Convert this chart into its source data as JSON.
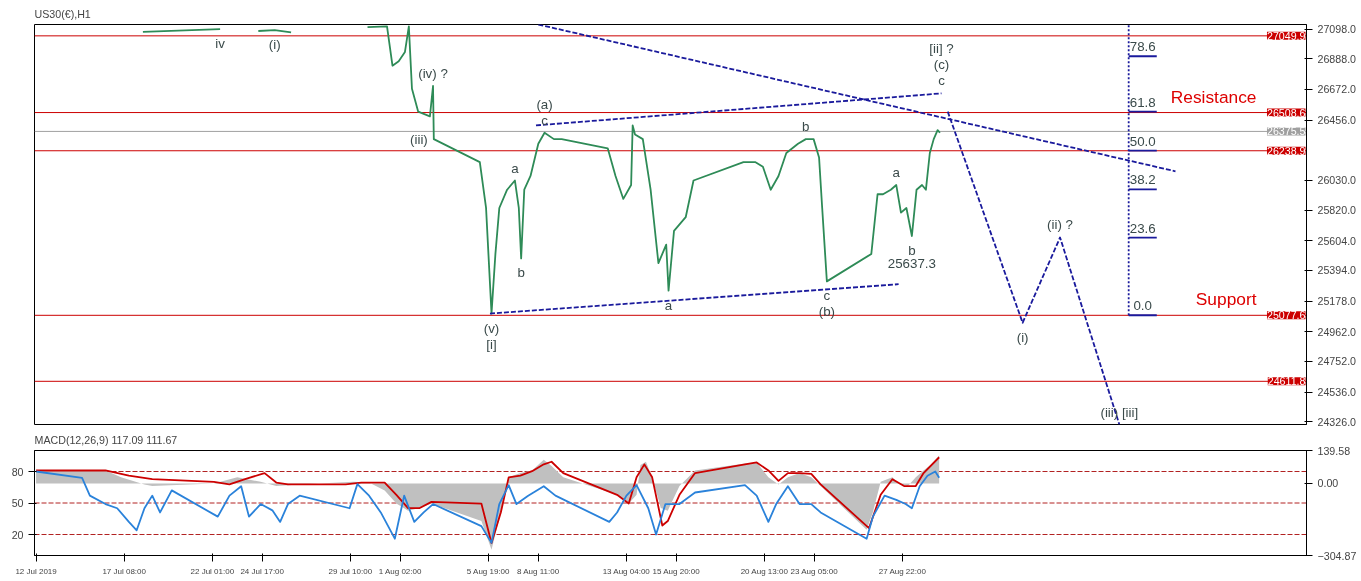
{
  "chart_data": [
    {
      "type": "line",
      "title": "US30(€),H1",
      "tick_labels": "y",
      "grid": false,
      "xlim": [
        "2019-07-12T13:00",
        "2019-09-18T12:00"
      ],
      "ylim": [
        24307,
        27130
      ],
      "yticks": [
        {
          "value": 27098,
          "label": "27098.0"
        },
        {
          "value": 26888,
          "label": "26888.0"
        },
        {
          "value": 26672,
          "label": "26672.0"
        },
        {
          "value": 26456,
          "label": "26456.0"
        },
        {
          "value": 26030,
          "label": "26030.0"
        },
        {
          "value": 25820,
          "label": "25820.0"
        },
        {
          "value": 25604,
          "label": "25604.0"
        },
        {
          "value": 25394,
          "label": "25394.0"
        },
        {
          "value": 25178,
          "label": "25178.0"
        },
        {
          "value": 24962,
          "label": "24962.0"
        },
        {
          "value": 24752,
          "label": "24752.0"
        },
        {
          "value": 24536,
          "label": "24536.0"
        },
        {
          "value": 24326,
          "label": "24326.0"
        }
      ],
      "series": [
        {
          "color": "#2e8b57",
          "line_style": "solid",
          "x": [
            "2019-07-18T08:00",
            "2019-07-22T11:00",
            "2019-07-22T12:00",
            "2019-07-24T12:00",
            "2019-07-25T09:00",
            "2019-07-26T06:00",
            "2019-07-26T07:00",
            "2019-07-30T08:00",
            "2019-07-31T09:00",
            "2019-07-31T16:00",
            "2019-08-01T00:00",
            "2019-08-01T08:00",
            "2019-08-01T13:00",
            "2019-08-01T17:00",
            "2019-08-02T01:00",
            "2019-08-02T16:00",
            "2019-08-02T20:00",
            "2019-08-02T21:00",
            "2019-08-05T08:00",
            "2019-08-05T16:00",
            "2019-08-05T23:00",
            "2019-08-06T04:00",
            "2019-08-06T09:00",
            "2019-08-06T19:00",
            "2019-08-07T05:00",
            "2019-08-07T10:00",
            "2019-08-07T13:00",
            "2019-08-07T17:00",
            "2019-08-08T01:00",
            "2019-08-08T11:00",
            "2019-08-08T19:00",
            "2019-08-09T07:00",
            "2019-08-09T17:00",
            "2019-08-12T04:00",
            "2019-08-12T14:00",
            "2019-08-13T00:00",
            "2019-08-13T10:00",
            "2019-08-13T12:00",
            "2019-08-13T15:00",
            "2019-08-14T01:00",
            "2019-08-14T11:00",
            "2019-08-14T21:00",
            "2019-08-15T07:00",
            "2019-08-15T10:00",
            "2019-08-15T17:00",
            "2019-08-16T08:00",
            "2019-08-16T18:00",
            "2019-08-19T10:00",
            "2019-08-20T01:00",
            "2019-08-20T11:00",
            "2019-08-20T21:00",
            "2019-08-21T07:00",
            "2019-08-21T17:00",
            "2019-08-22T08:00",
            "2019-08-22T18:00",
            "2019-08-23T04:00",
            "2019-08-23T11:00",
            "2019-08-23T15:00",
            "2019-08-23T21:00",
            "2019-08-26T06:00",
            "2019-08-26T14:00",
            "2019-08-26T21:00",
            "2019-08-27T07:00",
            "2019-08-27T14:00",
            "2019-08-27T20:00",
            "2019-08-28T03:00",
            "2019-08-28T10:00",
            "2019-08-28T16:00",
            "2019-08-28T23:00",
            "2019-08-29T04:00",
            "2019-08-29T09:00",
            "2019-08-29T14:00",
            "2019-08-29T19:00",
            "2019-08-29T22:00"
          ],
          "values": [
            27078,
            27098,
            null,
            27084,
            27091,
            27075,
            null,
            27111,
            27117,
            26839,
            26871,
            26936,
            27117,
            26677,
            26515,
            26482,
            26696,
            26321,
            26159,
            25835,
            25090,
            25511,
            25835,
            25964,
            26029,
            25835,
            25479,
            25964,
            26061,
            26288,
            26366,
            26321,
            26321,
            26256,
            26061,
            25899,
            25997,
            26418,
            26353,
            26321,
            25964,
            25446,
            25576,
            25252,
            25673,
            25770,
            26029,
            26159,
            26159,
            26126,
            25964,
            26061,
            26223,
            26288,
            26321,
            26321,
            26191,
            25835,
            25317,
            25511,
            25932,
            25932,
            25964,
            25997,
            25802,
            25835,
            25637.3,
            25964,
            25997,
            25964,
            26223,
            26321,
            26385,
            26366
          ]
        },
        {
          "color": "#1a1a9c",
          "line_style": "dashed",
          "x": [
            "2019-08-08T08:00",
            "2019-08-30T00:00"
          ],
          "values": [
            26418,
            26644
          ]
        },
        {
          "color": "#1a1a9c",
          "line_style": "dashed",
          "x": [
            "2019-08-05T21:00",
            "2019-08-27T17:00"
          ],
          "values": [
            25090,
            25297
          ]
        },
        {
          "color": "#1a1a9c",
          "line_style": "dashed",
          "x": [
            "2019-08-08T11:00",
            "2019-09-11T12:00"
          ],
          "values": [
            27130,
            26094
          ]
        },
        {
          "color": "#1a1a9c",
          "line_style": "dashed",
          "x": [
            "2019-08-30T08:00",
            "2019-09-03T08:00",
            "2019-09-05T08:00",
            "2019-09-08T12:00"
          ],
          "values": [
            26515,
            25025,
            25627,
            24307
          ]
        },
        {
          "color": "#1a1a9c",
          "line_style": "dotted",
          "x": [
            "2019-09-09T00:00",
            "2019-09-09T00:00"
          ],
          "values": [
            25078,
            27130
          ]
        },
        {
          "color": "#1a1a9c",
          "line_style": "solid",
          "x": [
            "2019-09-09T00:00",
            "2019-09-09T18:00",
            "2019-09-10T12:00"
          ],
          "values": [
            26906,
            26906,
            26906
          ]
        },
        {
          "color": "#1a1a9c",
          "line_style": "solid",
          "x": [
            "2019-09-09T00:00",
            "2019-09-09T18:00",
            "2019-09-10T12:00"
          ],
          "values": [
            26515,
            26515,
            26515
          ]
        },
        {
          "color": "#1a1a9c",
          "line_style": "solid",
          "x": [
            "2019-09-09T00:00",
            "2019-09-09T18:00",
            "2019-09-10T12:00"
          ],
          "values": [
            26240,
            26240,
            26240
          ]
        },
        {
          "color": "#1a1a9c",
          "line_style": "solid",
          "x": [
            "2019-09-09T00:00",
            "2019-09-09T18:00",
            "2019-09-10T12:00"
          ],
          "values": [
            25966,
            25966,
            25966
          ]
        },
        {
          "color": "#1a1a9c",
          "line_style": "solid",
          "x": [
            "2019-09-09T00:00",
            "2019-09-09T18:00",
            "2019-09-10T12:00"
          ],
          "values": [
            25626,
            25626,
            25626
          ]
        },
        {
          "color": "#1a1a9c",
          "line_style": "solid",
          "x": [
            "2019-09-09T00:00",
            "2019-09-09T18:00",
            "2019-09-10T12:00"
          ],
          "values": [
            25078,
            25078,
            25078
          ]
        }
      ],
      "ref_lines": [
        {
          "axis": "y",
          "value": 27049.9,
          "label": "27049.9",
          "color": "#cc0000"
        },
        {
          "axis": "y",
          "value": 26508.6,
          "label": "26508.6",
          "color": "#cc0000"
        },
        {
          "axis": "y",
          "value": 26375.5,
          "label": "26375.5",
          "color": "#a0a0a0"
        },
        {
          "axis": "y",
          "value": 26238.9,
          "label": "26238.9",
          "color": "#cc0000"
        },
        {
          "axis": "y",
          "value": 25077.6,
          "label": "25077.6",
          "color": "#cc0000"
        },
        {
          "axis": "y",
          "value": 24611.8,
          "label": "24611.8",
          "color": "#cc0000"
        }
      ],
      "annotations": [
        {
          "text": "iv",
          "x": "2019-07-22T11:00",
          "y": 27098
        },
        {
          "text": "(i)",
          "x": "2019-07-25T09:00",
          "y": 27091
        },
        {
          "text": "(iv) ?",
          "x": "2019-08-02T20:00",
          "y": 26696
        },
        {
          "text": "(iii)",
          "x": "2019-08-02T21:00",
          "y": 26321
        },
        {
          "text": "c",
          "x": "2019-08-08T19:00",
          "y": 26366
        },
        {
          "text": "(a)",
          "x": "2019-08-08T19:00",
          "y": 26366
        },
        {
          "text": "a",
          "x": "2019-08-07T05:00",
          "y": 26029
        },
        {
          "text": "b",
          "x": "2019-08-07T13:00",
          "y": 25479
        },
        {
          "text": "(v)",
          "x": "2019-08-05T23:00",
          "y": 25090
        },
        {
          "text": "[i]",
          "x": "2019-08-05T23:00",
          "y": 25090
        },
        {
          "text": "a",
          "x": "2019-08-15T10:00",
          "y": 25252
        },
        {
          "text": "b",
          "x": "2019-08-22T18:00",
          "y": 26321
        },
        {
          "text": "a",
          "x": "2019-08-27T14:00",
          "y": 25997
        },
        {
          "text": "b",
          "x": "2019-08-28T10:00",
          "y": 25637.3
        },
        {
          "text": "25637.3",
          "x": "2019-08-28T10:00",
          "y": 25637.3
        },
        {
          "text": "c",
          "x": "2019-08-23T21:00",
          "y": 25317
        },
        {
          "text": "(b)",
          "x": "2019-08-23T21:00",
          "y": 25317
        },
        {
          "text": "c",
          "x": "2019-08-30T00:00",
          "y": 26644
        },
        {
          "text": "(c)",
          "x": "2019-08-30T00:00",
          "y": 26644
        },
        {
          "text": "[ii] ?",
          "x": "2019-08-30T00:00",
          "y": 26644
        },
        {
          "text": "(i)",
          "x": "2019-09-03T08:00",
          "y": 25025
        },
        {
          "text": "(ii) ?",
          "x": "2019-09-05T08:00",
          "y": 25627
        },
        {
          "text": "(iii) [iii]",
          "x": "2019-09-08T12:00",
          "y": 24307
        },
        {
          "text": "78.6",
          "x": "2019-09-09T18:00",
          "y": 26906
        },
        {
          "text": "61.8",
          "x": "2019-09-09T18:00",
          "y": 26515
        },
        {
          "text": "50.0",
          "x": "2019-09-09T18:00",
          "y": 26240
        },
        {
          "text": "38.2",
          "x": "2019-09-09T18:00",
          "y": 25966
        },
        {
          "text": "23.6",
          "x": "2019-09-09T18:00",
          "y": 25626
        },
        {
          "text": "0.0",
          "x": "2019-09-09T18:00",
          "y": 25078
        },
        {
          "text": "Resistance",
          "y": 26508.6
        },
        {
          "text": "Support",
          "y": 25077.6
        }
      ]
    },
    {
      "type": "line",
      "title": "MACD(12,26,9) 117.09 111.67",
      "grid": false,
      "xlim": [
        "2019-07-12T13:00",
        "2019-09-18T12:00"
      ],
      "ylim": [
        -304.87,
        139.58
      ],
      "y2lim": [
        0,
        100
      ],
      "xticks": [
        {
          "value": "2019-07-12T15:00",
          "label": "12 Jul 2019"
        },
        {
          "value": "2019-07-17T08:00",
          "label": "17 Jul 08:00"
        },
        {
          "value": "2019-07-22T01:00",
          "label": "22 Jul 01:00"
        },
        {
          "value": "2019-07-24T17:00",
          "label": "24 Jul 17:00"
        },
        {
          "value": "2019-07-29T10:00",
          "label": "29 Jul 10:00"
        },
        {
          "value": "2019-08-01T02:00",
          "label": "1 Aug 02:00"
        },
        {
          "value": "2019-08-05T19:00",
          "label": "5 Aug 19:00"
        },
        {
          "value": "2019-08-08T11:00",
          "label": "8 Aug 11:00"
        },
        {
          "value": "2019-08-13T04:00",
          "label": "13 Aug 04:00"
        },
        {
          "value": "2019-08-15T20:00",
          "label": "15 Aug 20:00"
        },
        {
          "value": "2019-08-20T13:00",
          "label": "20 Aug 13:00"
        },
        {
          "value": "2019-08-23T05:00",
          "label": "23 Aug 05:00"
        },
        {
          "value": "2019-08-27T22:00",
          "label": "27 Aug 22:00"
        }
      ],
      "yticks": [
        139.58,
        {
          "value": 0,
          "label": "0.00"
        },
        -304.87
      ],
      "y2ticks": [
        80,
        50,
        20
      ],
      "series": [
        {
          "type": "area",
          "color": "#c0c0c0",
          "x": [
            "2019-07-12T15:00",
            "2019-07-16T08:00",
            "2019-07-17T04:00",
            "2019-07-18T10:00",
            "2019-07-18T20:00",
            "2019-07-22T03:00",
            "2019-07-23T09:00",
            "2019-07-24T15:00",
            "2019-07-25T11:00",
            "2019-07-26T17:00",
            "2019-07-29T14:00",
            "2019-07-30T10:00",
            "2019-07-31T06:00",
            "2019-07-31T21:00",
            "2019-08-01T12:00",
            "2019-08-02T03:00",
            "2019-08-02T18:00",
            "2019-08-05T10:00",
            "2019-08-05T23:00",
            "2019-08-06T11:00",
            "2019-08-06T21:00",
            "2019-08-07T12:00",
            "2019-08-08T03:00",
            "2019-08-08T18:00",
            "2019-08-09T04:00",
            "2019-08-09T19:00",
            "2019-08-12T16:00",
            "2019-08-13T07:00",
            "2019-08-13T17:00",
            "2019-08-13T22:00",
            "2019-08-14T05:00",
            "2019-08-14T13:00",
            "2019-08-15T00:00",
            "2019-08-15T09:00",
            "2019-08-16T00:00",
            "2019-08-16T20:00",
            "2019-08-19T12:00",
            "2019-08-20T03:00",
            "2019-08-20T18:00",
            "2019-08-21T07:00",
            "2019-08-21T19:00",
            "2019-08-22T10:00",
            "2019-08-23T01:00",
            "2019-08-23T13:00",
            "2019-08-26T00:00",
            "2019-08-26T08:00",
            "2019-08-26T18:00",
            "2019-08-27T09:00",
            "2019-08-27T19:00",
            "2019-08-28T05:00",
            "2019-08-28T15:00",
            "2019-08-29T01:00",
            "2019-08-29T11:00",
            "2019-08-29T21:00"
          ],
          "values": [
            55,
            55,
            26,
            -4,
            -11,
            0,
            26,
            7,
            -11,
            -4,
            7,
            4,
            -30,
            -85,
            -115,
            -104,
            -85,
            -159,
            -281,
            -122,
            26,
            44,
            55,
            100,
            74,
            26,
            -48,
            -85,
            -48,
            78,
            92,
            26,
            -104,
            -115,
            -11,
            55,
            85,
            89,
            26,
            -4,
            26,
            44,
            26,
            -11,
            -196,
            -122,
            7,
            26,
            -4,
            -11,
            26,
            55,
            81,
            118
          ]
        },
        {
          "color": "#cc0000",
          "x": [
            "2019-07-12T15:00",
            "2019-07-16T08:00",
            "2019-07-17T14:00",
            "2019-07-18T20:00",
            "2019-07-22T03:00",
            "2019-07-22T23:00",
            "2019-07-23T19:00",
            "2019-07-24T20:00",
            "2019-07-25T11:00",
            "2019-07-26T02:00",
            "2019-07-29T04:00",
            "2019-07-30T00:00",
            "2019-07-31T06:00",
            "2019-07-31T21:00",
            "2019-08-01T12:00",
            "2019-08-02T03:00",
            "2019-08-02T18:00",
            "2019-08-05T10:00",
            "2019-08-05T23:00",
            "2019-08-06T11:00",
            "2019-08-06T21:00",
            "2019-08-07T12:00",
            "2019-08-08T03:00",
            "2019-08-08T18:00",
            "2019-08-09T04:00",
            "2019-08-09T19:00",
            "2019-08-12T16:00",
            "2019-08-13T07:00",
            "2019-08-13T17:00",
            "2019-08-14T03:00",
            "2019-08-14T13:00",
            "2019-08-15T02:00",
            "2019-08-15T09:00",
            "2019-08-16T00:00",
            "2019-08-16T20:00",
            "2019-08-19T12:00",
            "2019-08-20T03:00",
            "2019-08-20T18:00",
            "2019-08-21T07:00",
            "2019-08-21T19:00",
            "2019-08-22T10:00",
            "2019-08-23T01:00",
            "2019-08-23T13:00",
            "2019-08-26T03:00",
            "2019-08-26T18:00",
            "2019-08-27T09:00",
            "2019-08-28T00:00",
            "2019-08-28T15:00",
            "2019-08-29T01:00",
            "2019-08-29T21:00"
          ],
          "values": [
            55,
            55,
            33,
            18,
            7,
            -4,
            18,
            44,
            4,
            -4,
            -4,
            4,
            4,
            -48,
            -104,
            -104,
            -78,
            -85,
            -252,
            -122,
            26,
            33,
            52,
            81,
            92,
            44,
            -48,
            -85,
            26,
            81,
            26,
            -178,
            -159,
            -48,
            44,
            81,
            89,
            55,
            11,
            44,
            44,
            41,
            -4,
            -189,
            -48,
            18,
            -11,
            -11,
            44,
            111
          ]
        },
        {
          "color": "#2a82da",
          "axis": "y2",
          "x": [
            "2019-07-12T15:00",
            "2019-07-15T02:00",
            "2019-07-15T12:00",
            "2019-07-16T08:00",
            "2019-07-16T23:00",
            "2019-07-17T14:00",
            "2019-07-18T00:00",
            "2019-07-18T10:00",
            "2019-07-18T20:00",
            "2019-07-19T06:00",
            "2019-07-19T21:00",
            "2019-07-22T08:00",
            "2019-07-22T23:00",
            "2019-07-23T14:00",
            "2019-07-24T00:00",
            "2019-07-24T15:00",
            "2019-07-25T06:00",
            "2019-07-25T16:00",
            "2019-07-26T02:00",
            "2019-07-26T17:00",
            "2019-07-29T09:00",
            "2019-07-29T19:00",
            "2019-07-30T10:00",
            "2019-07-31T01:00",
            "2019-07-31T19:00",
            "2019-08-01T07:00",
            "2019-08-01T20:00",
            "2019-08-02T08:00",
            "2019-08-02T20:00",
            "2019-08-05T10:00",
            "2019-08-05T23:00",
            "2019-08-06T09:00",
            "2019-08-06T21:00",
            "2019-08-07T07:00",
            "2019-08-07T22:00",
            "2019-08-08T18:00",
            "2019-08-09T09:00",
            "2019-08-12T06:00",
            "2019-08-12T16:00",
            "2019-08-13T04:00",
            "2019-08-13T17:00",
            "2019-08-14T08:00",
            "2019-08-14T18:00",
            "2019-08-15T06:00",
            "2019-08-16T00:00",
            "2019-08-16T20:00",
            "2019-08-19T12:00",
            "2019-08-20T03:00",
            "2019-08-20T18:00",
            "2019-08-21T04:00",
            "2019-08-21T19:00",
            "2019-08-22T10:00",
            "2019-08-23T01:00",
            "2019-08-23T13:00",
            "2019-08-26T00:00",
            "2019-08-26T08:00",
            "2019-08-26T23:00",
            "2019-08-27T14:00",
            "2019-08-28T02:00",
            "2019-08-28T10:00",
            "2019-08-28T20:00",
            "2019-08-29T06:00",
            "2019-08-29T16:00",
            "2019-08-29T21:00"
          ],
          "values": [
            80,
            74,
            57,
            49,
            45,
            32,
            24,
            45,
            57,
            41,
            62,
            37,
            57,
            66,
            37,
            49,
            43,
            32,
            49,
            57,
            45,
            68,
            57,
            41,
            16,
            57,
            32,
            41,
            49,
            28,
            12,
            49,
            67,
            49,
            57,
            66,
            57,
            32,
            41,
            57,
            67,
            45,
            20,
            49,
            49,
            60,
            67,
            57,
            32,
            49,
            66,
            49,
            49,
            41,
            16,
            37,
            57,
            53,
            49,
            45,
            66,
            76,
            80,
            74
          ]
        }
      ],
      "ref_lines": [
        {
          "axis": "y2",
          "value": 80,
          "color": "#b22222",
          "line_style": "dashed"
        },
        {
          "axis": "y2",
          "value": 50,
          "color": "#b22222",
          "line_style": "dashed"
        },
        {
          "axis": "y2",
          "value": 20,
          "color": "#b22222",
          "line_style": "dashed"
        }
      ]
    }
  ]
}
